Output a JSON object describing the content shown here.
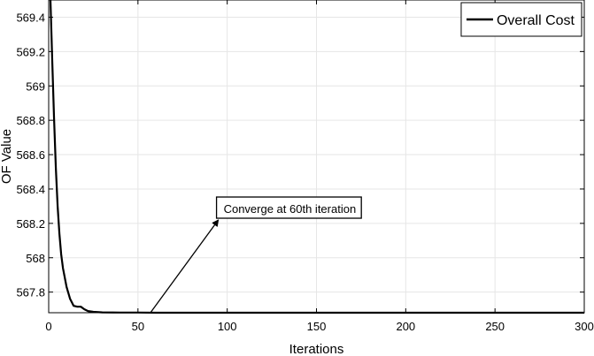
{
  "chart_data": {
    "type": "line",
    "title": "",
    "xlabel": "Iterations",
    "ylabel": "OF Value",
    "xlim": [
      0,
      300
    ],
    "ylim": [
      567.68,
      569.5
    ],
    "xticks": [
      0,
      50,
      100,
      150,
      200,
      250,
      300
    ],
    "xtick_labels": [
      "0",
      "50",
      "100",
      "150",
      "200",
      "250",
      "300"
    ],
    "yticks": [
      567.8,
      568,
      568.2,
      568.4,
      568.6,
      568.8,
      569,
      569.2,
      569.4
    ],
    "ytick_labels": [
      "567.8",
      "568",
      "568.2",
      "568.4",
      "568.6",
      "568.8",
      "569",
      "569.2",
      "569.4"
    ],
    "grid": true,
    "legend_position": "top-right",
    "series": [
      {
        "name": "Overall Cost",
        "color": "#000000",
        "x": [
          1,
          2,
          3,
          4,
          5,
          6,
          7,
          8,
          10,
          12,
          14,
          16,
          18,
          20,
          22,
          25,
          30,
          40,
          50,
          60,
          80,
          100,
          150,
          200,
          250,
          300
        ],
        "y": [
          569.5,
          569.15,
          568.82,
          568.52,
          568.3,
          568.14,
          568.02,
          567.94,
          567.83,
          567.76,
          567.72,
          567.715,
          567.715,
          567.7,
          567.69,
          567.685,
          567.682,
          567.681,
          567.681,
          567.68,
          567.68,
          567.68,
          567.68,
          567.68,
          567.68,
          567.68
        ]
      }
    ],
    "annotation": {
      "text": "Converge at 60th iteration",
      "point_x": 57,
      "point_y": 567.68,
      "text_x": 95,
      "text_y": 568.23
    }
  }
}
